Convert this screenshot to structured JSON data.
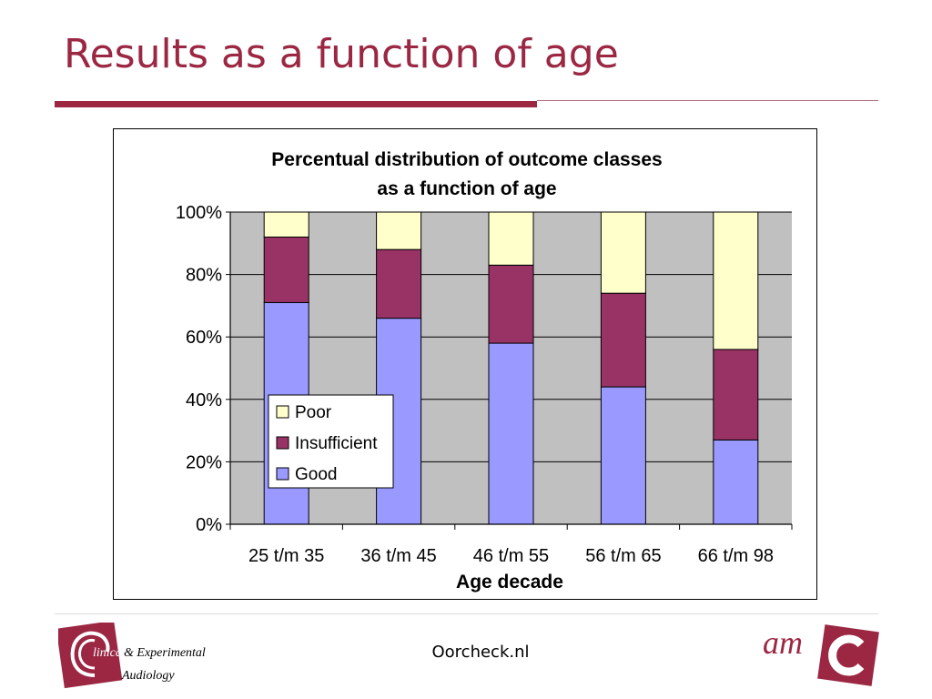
{
  "slide": {
    "title": "Results as a function of age",
    "footer_center": "Oorcheck.nl",
    "logo_left": {
      "text_a": "linical",
      "text_b": "& Experimental",
      "text_c": "Audiology"
    },
    "logo_right": {
      "text": "am"
    }
  },
  "colors": {
    "accent": "#9b2743",
    "plot_bg": "#c0c0c0",
    "good": "#9999ff",
    "insufficient": "#993366",
    "poor": "#ffffcc"
  },
  "chart_data": {
    "type": "bar",
    "stacked": true,
    "title_lines": [
      "Percentual distribution of outcome classes",
      "as a function of age"
    ],
    "xlabel": "Age decade",
    "ylabel": "",
    "categories": [
      "25 t/m 35",
      "36 t/m 45",
      "46 t/m 55",
      "56 t/m 65",
      "66 t/m 98"
    ],
    "yticks": [
      "0%",
      "20%",
      "40%",
      "60%",
      "80%",
      "100%"
    ],
    "ylim": [
      0,
      100
    ],
    "grid": true,
    "legend_position": "left-bottom",
    "legend_order": [
      "Poor",
      "Insufficient",
      "Good"
    ],
    "series": [
      {
        "name": "Good",
        "values": [
          71,
          66,
          58,
          44,
          27
        ]
      },
      {
        "name": "Insufficient",
        "values": [
          21,
          22,
          25,
          30,
          29
        ]
      },
      {
        "name": "Poor",
        "values": [
          8,
          12,
          17,
          26,
          44
        ]
      }
    ]
  }
}
